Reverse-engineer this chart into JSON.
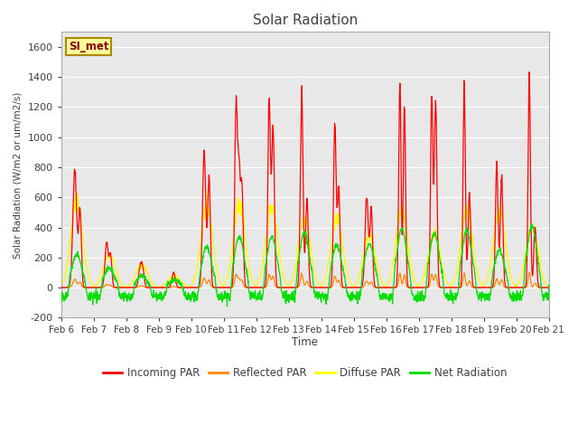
{
  "title": "Solar Radiation",
  "ylabel": "Solar Radiation (W/m2 or um/m2/s)",
  "xlabel": "Time",
  "ylim": [
    -200,
    1700
  ],
  "yticks": [
    -200,
    0,
    200,
    400,
    600,
    800,
    1000,
    1200,
    1400,
    1600
  ],
  "x_labels": [
    "Feb 6",
    "Feb 7",
    "Feb 8",
    "Feb 9",
    "Feb 10",
    "Feb 11",
    "Feb 12",
    "Feb 13",
    "Feb 14",
    "Feb 15",
    "Feb 16",
    "Feb 17",
    "Feb 18",
    "Feb 19",
    "Feb 20",
    "Feb 21"
  ],
  "legend_labels": [
    "Incoming PAR",
    "Reflected PAR",
    "Diffuse PAR",
    "Net Radiation"
  ],
  "line_colors": {
    "incoming": "#ff0000",
    "reflected": "#ff8800",
    "diffuse": "#ffff00",
    "net": "#00dd00"
  },
  "annotation_text": "SI_met",
  "plot_background": "#e8e8e8",
  "grid_color": "#ffffff",
  "axis_color": "#404040",
  "title_color": "#404040"
}
